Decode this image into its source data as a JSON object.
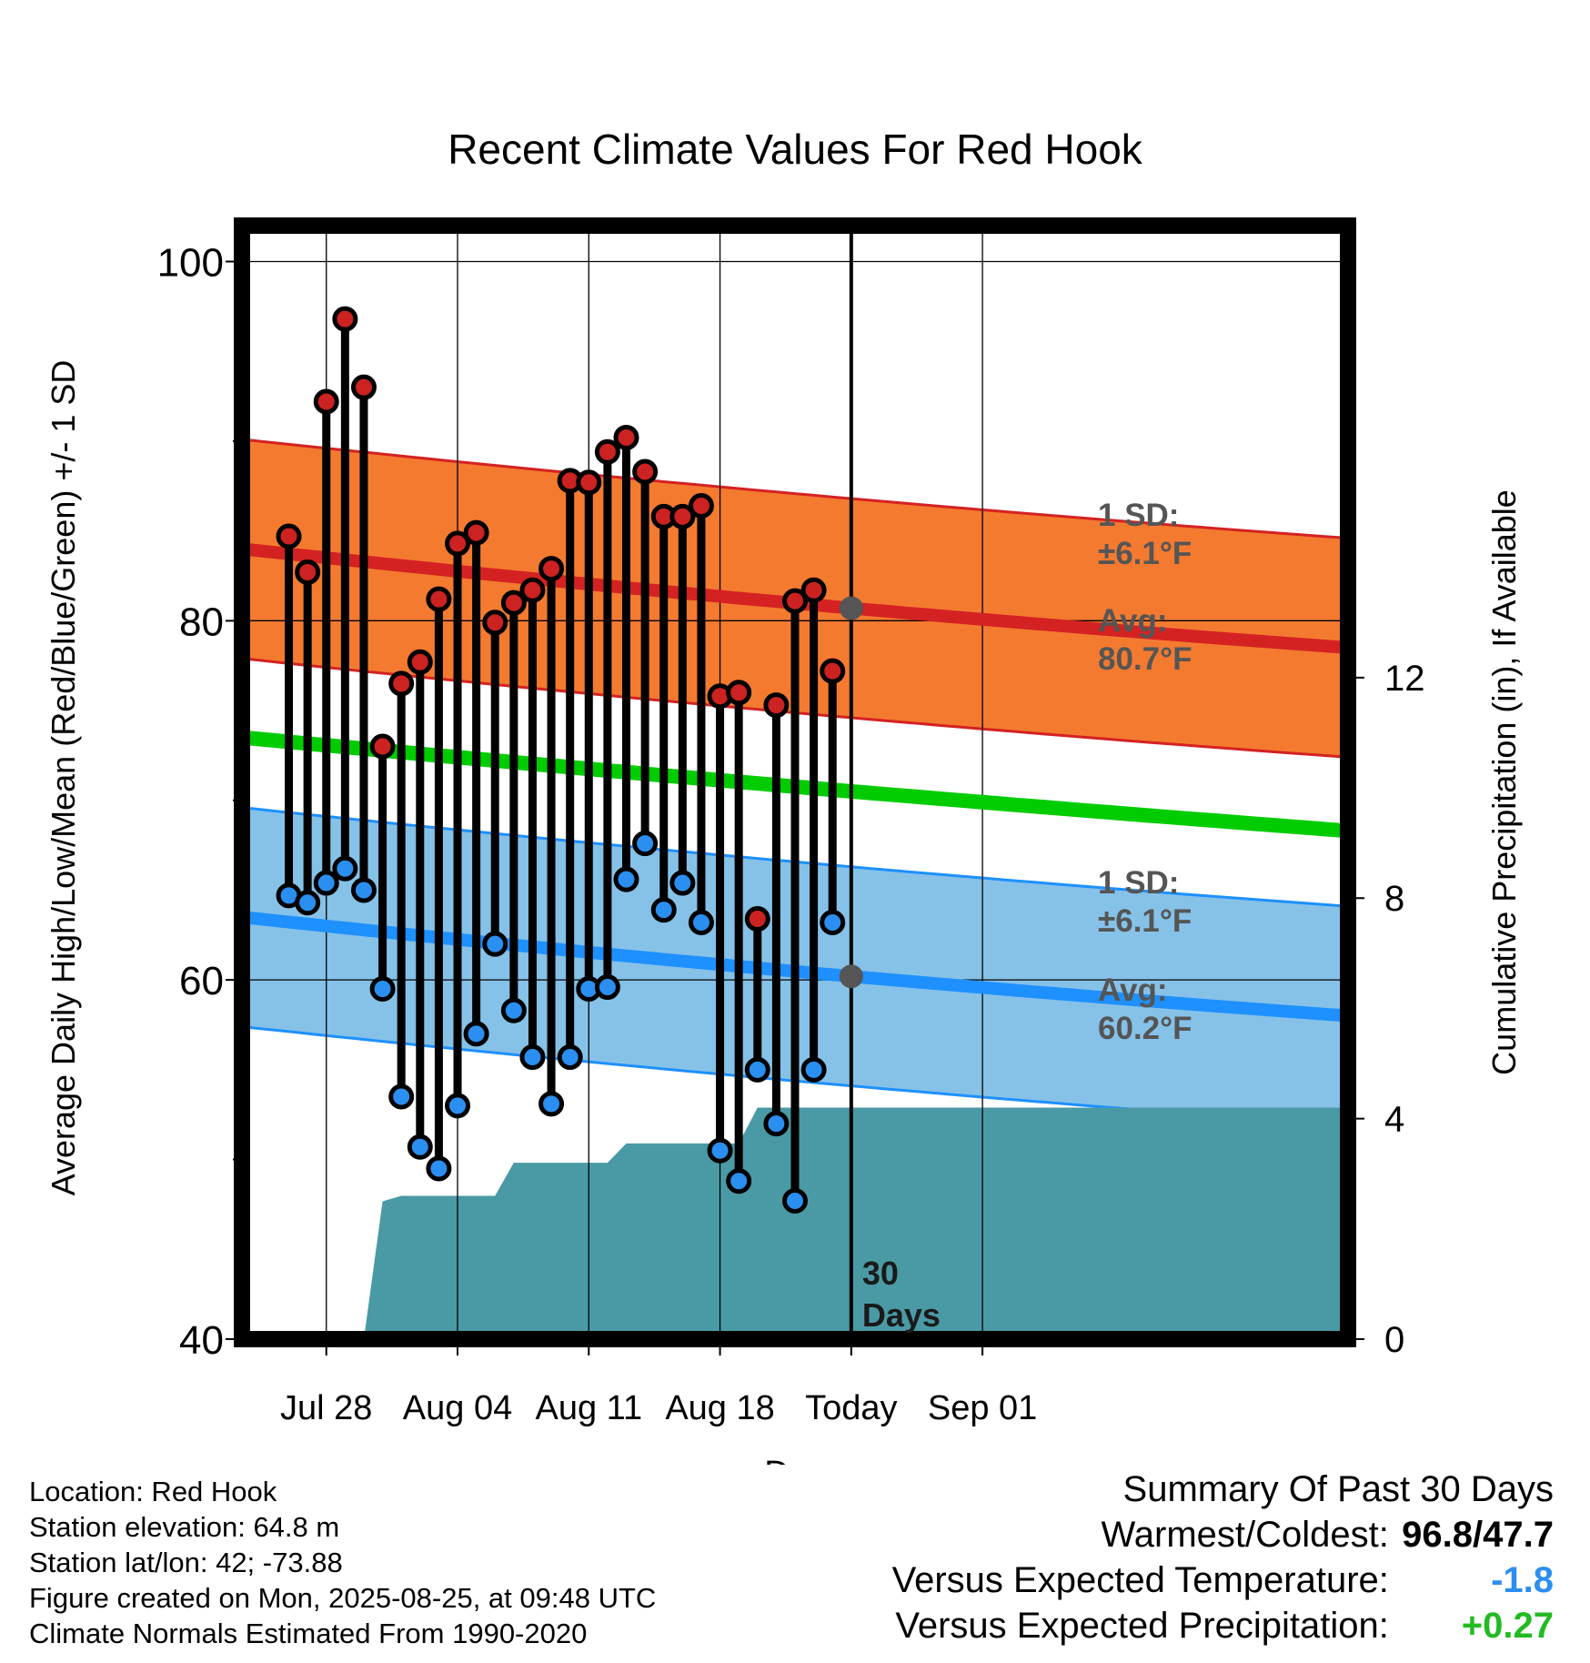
{
  "chart_data": {
    "type": "line",
    "title": "Recent Climate Values For Red Hook",
    "xlabel": "Day",
    "ylabel": "Average Daily High/Low/Mean (Red/Blue/Green) +/- 1 SD",
    "y2label": "Cumulative Precipitation (in), If Available",
    "ylim": [
      40,
      102
    ],
    "y2lim": [
      0,
      20.2
    ],
    "xlim": [
      -4.5,
      54.5
    ],
    "x_unit": "days relative to Jul 28",
    "x_ticks": [
      {
        "x": 0,
        "label": "Jul 28"
      },
      {
        "x": 7,
        "label": "Aug 04"
      },
      {
        "x": 14,
        "label": "Aug 11"
      },
      {
        "x": 21,
        "label": "Aug 18"
      },
      {
        "x": 28,
        "label": "Today"
      },
      {
        "x": 35,
        "label": "Sep 01"
      }
    ],
    "y_ticks": [
      40,
      60,
      80,
      100
    ],
    "y2_ticks": [
      0,
      4,
      8,
      12
    ],
    "grid": true,
    "today_x": 28,
    "today_label": "30 Days",
    "normal_high": {
      "start": 84.0,
      "today": 80.7,
      "end": 78.5
    },
    "normal_high_sd_label": "1 SD:",
    "normal_high_sd_value": "±6.1°F",
    "normal_high_avg_label": "Avg:",
    "normal_high_avg_value": "80.7°F",
    "normal_low": {
      "start": 63.5,
      "today": 60.2,
      "end": 58.0
    },
    "normal_low_sd_label": "1 SD:",
    "normal_low_sd_value": "±6.1°F",
    "normal_low_avg_label": "Avg:",
    "normal_low_avg_value": "60.2°F",
    "normal_mean": {
      "start": 73.5,
      "today": 70.5,
      "end": 68.3
    },
    "sd": 6.1,
    "daily": [
      {
        "x": -2,
        "high": 84.7,
        "low": 64.7
      },
      {
        "x": -1,
        "high": 82.7,
        "low": 64.3
      },
      {
        "x": 0,
        "high": 92.2,
        "low": 65.4
      },
      {
        "x": 1,
        "high": 96.8,
        "low": 66.2
      },
      {
        "x": 2,
        "high": 93.0,
        "low": 65.0
      },
      {
        "x": 3,
        "high": 73.0,
        "low": 59.5
      },
      {
        "x": 4,
        "high": 76.5,
        "low": 53.5
      },
      {
        "x": 5,
        "high": 77.7,
        "low": 50.7
      },
      {
        "x": 6,
        "high": 81.2,
        "low": 49.5
      },
      {
        "x": 7,
        "high": 84.3,
        "low": 53.0
      },
      {
        "x": 8,
        "high": 84.9,
        "low": 57.0
      },
      {
        "x": 9,
        "high": 79.9,
        "low": 62.0
      },
      {
        "x": 10,
        "high": 81.0,
        "low": 58.3
      },
      {
        "x": 11,
        "high": 81.7,
        "low": 55.7
      },
      {
        "x": 12,
        "high": 82.9,
        "low": 53.1
      },
      {
        "x": 13,
        "high": 87.8,
        "low": 55.7
      },
      {
        "x": 14,
        "high": 87.7,
        "low": 59.5
      },
      {
        "x": 15,
        "high": 89.4,
        "low": 59.6
      },
      {
        "x": 16,
        "high": 90.2,
        "low": 65.6
      },
      {
        "x": 17,
        "high": 88.3,
        "low": 67.6
      },
      {
        "x": 18,
        "high": 85.8,
        "low": 63.9
      },
      {
        "x": 19,
        "high": 85.8,
        "low": 65.4
      },
      {
        "x": 20,
        "high": 86.4,
        "low": 63.2
      },
      {
        "x": 21,
        "high": 75.8,
        "low": 50.5
      },
      {
        "x": 22,
        "high": 76.0,
        "low": 48.8
      },
      {
        "x": 23,
        "high": 63.4,
        "low": 55.0
      },
      {
        "x": 24,
        "high": 75.3,
        "low": 52.0
      },
      {
        "x": 25,
        "high": 81.1,
        "low": 47.7
      },
      {
        "x": 26,
        "high": 81.7,
        "low": 55.0
      },
      {
        "x": 27,
        "high": 77.2,
        "low": 63.2
      }
    ],
    "precip_cumulative": [
      {
        "x": 2,
        "y": 0.0
      },
      {
        "x": 3,
        "y": 2.5
      },
      {
        "x": 4,
        "y": 2.6
      },
      {
        "x": 9,
        "y": 2.6
      },
      {
        "x": 10,
        "y": 3.2
      },
      {
        "x": 15,
        "y": 3.2
      },
      {
        "x": 16,
        "y": 3.55
      },
      {
        "x": 22,
        "y": 3.55
      },
      {
        "x": 23,
        "y": 4.2
      },
      {
        "x": 54.5,
        "y": 4.2
      }
    ]
  },
  "colors": {
    "high_band": "#f47a30",
    "high_line": "#d42222",
    "low_band": "#86c2e8",
    "low_line": "#1e90ff",
    "mean_line": "#00cc00",
    "precip_fill": "#4a9aa5",
    "high_dot": "#cc2222",
    "low_dot": "#2a8ff0",
    "today_marker": "#555555"
  },
  "info": {
    "location": "Location: Red Hook",
    "elevation": "Station elevation: 64.8 m",
    "latlon": "Station lat/lon: 42; -73.88",
    "created": "Figure created on Mon, 2025-08-25, at 09:48 UTC",
    "normals": "Climate Normals Estimated From 1990-2020"
  },
  "summary": {
    "title": "Summary Of Past 30 Days",
    "warmest_label": "Warmest/Coldest:",
    "warmest_value": "96.8/47.7",
    "temp_label": "Versus Expected Temperature:",
    "temp_value": "-1.8",
    "temp_color": "#2a8ff0",
    "precip_label": "Versus Expected Precipitation:",
    "precip_value": "+0.27",
    "precip_color": "#22bb22"
  }
}
